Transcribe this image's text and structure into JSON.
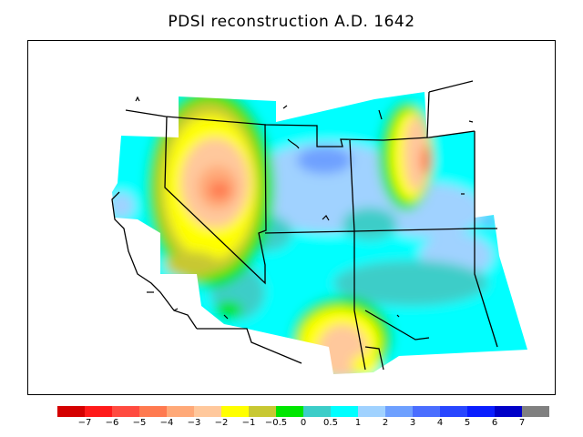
{
  "title": "PDSI reconstruction A.D. 1642",
  "legend": {
    "colors": [
      "#d40000",
      "#ff1a1a",
      "#ff4b40",
      "#ff7a50",
      "#ffa978",
      "#ffc89c",
      "#ffff00",
      "#c8c832",
      "#00e600",
      "#3ccdc8",
      "#00ffff",
      "#a0d2ff",
      "#6ea0ff",
      "#4a6eff",
      "#2846ff",
      "#0a1eff",
      "#0000c8",
      "#808080"
    ],
    "ticks": [
      "−7",
      "−6",
      "−5",
      "−4",
      "−3",
      "−2",
      "−1",
      "−0.5",
      "0",
      "0.5",
      "1",
      "2",
      "3",
      "4",
      "5",
      "6",
      "7"
    ]
  }
}
